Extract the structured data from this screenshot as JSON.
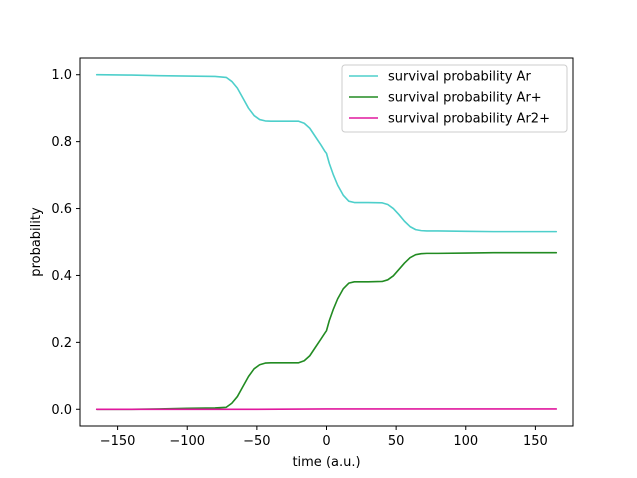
{
  "chart_data": {
    "type": "line",
    "title": "",
    "xlabel": "time (a.u.)",
    "ylabel": "probability",
    "xlim": [
      -177,
      177
    ],
    "ylim": [
      -0.05,
      1.05
    ],
    "xticks": [
      -150,
      -100,
      -50,
      0,
      50,
      100,
      150
    ],
    "yticks": [
      0.0,
      0.2,
      0.4,
      0.6,
      0.8,
      1.0
    ],
    "xtick_labels": [
      "−150",
      "−100",
      "−50",
      "0",
      "50",
      "100",
      "150"
    ],
    "ytick_labels": [
      "0.0",
      "0.2",
      "0.4",
      "0.6",
      "0.8",
      "1.0"
    ],
    "grid": false,
    "legend_position": "top-right",
    "series": [
      {
        "name": "survival probability Ar",
        "color": "#4ecfcb",
        "x": [
          -165,
          -140,
          -120,
          -100,
          -80,
          -72,
          -68,
          -64,
          -60,
          -56,
          -52,
          -48,
          -44,
          -40,
          -30,
          -20,
          -16,
          -12,
          -8,
          -4,
          -1,
          0,
          2,
          5,
          8,
          12,
          16,
          20,
          30,
          40,
          44,
          48,
          52,
          56,
          60,
          64,
          68,
          72,
          80,
          100,
          120,
          140,
          165
        ],
        "y": [
          1.0,
          0.999,
          0.997,
          0.996,
          0.995,
          0.992,
          0.98,
          0.96,
          0.93,
          0.9,
          0.878,
          0.866,
          0.862,
          0.861,
          0.861,
          0.861,
          0.855,
          0.84,
          0.815,
          0.79,
          0.77,
          0.765,
          0.735,
          0.7,
          0.67,
          0.64,
          0.622,
          0.618,
          0.618,
          0.617,
          0.612,
          0.6,
          0.582,
          0.562,
          0.546,
          0.537,
          0.534,
          0.533,
          0.533,
          0.532,
          0.531,
          0.531,
          0.531
        ]
      },
      {
        "name": "survival probability Ar+",
        "color": "#228b22",
        "x": [
          -165,
          -140,
          -120,
          -100,
          -80,
          -72,
          -68,
          -64,
          -60,
          -56,
          -52,
          -48,
          -44,
          -40,
          -30,
          -20,
          -16,
          -12,
          -8,
          -4,
          -1,
          0,
          2,
          5,
          8,
          12,
          16,
          20,
          30,
          40,
          44,
          48,
          52,
          56,
          60,
          64,
          68,
          72,
          80,
          100,
          120,
          140,
          165
        ],
        "y": [
          0.0,
          0.0,
          0.001,
          0.003,
          0.004,
          0.006,
          0.018,
          0.038,
          0.068,
          0.098,
          0.121,
          0.133,
          0.138,
          0.139,
          0.139,
          0.139,
          0.145,
          0.16,
          0.185,
          0.21,
          0.229,
          0.235,
          0.265,
          0.3,
          0.33,
          0.36,
          0.377,
          0.381,
          0.381,
          0.382,
          0.387,
          0.399,
          0.418,
          0.437,
          0.453,
          0.462,
          0.465,
          0.466,
          0.466,
          0.467,
          0.468,
          0.468,
          0.468
        ]
      },
      {
        "name": "survival probability Ar2+",
        "color": "#e0189e",
        "x": [
          -165,
          -100,
          -50,
          0,
          50,
          100,
          165
        ],
        "y": [
          0.0,
          0.0,
          0.0,
          0.001,
          0.001,
          0.001,
          0.001
        ]
      }
    ]
  }
}
